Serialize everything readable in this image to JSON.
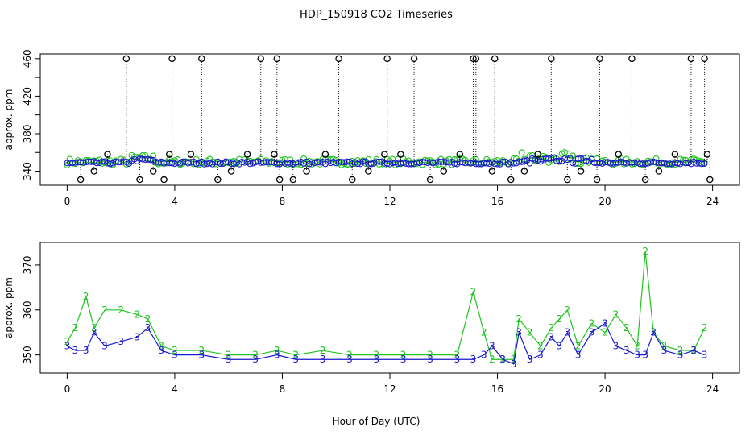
{
  "figure_title": "HDP_150918  CO2 Timeseries",
  "x_axis_label": "Hour of Day (UTC)",
  "colors": {
    "black": "#000000",
    "green": "#22c422",
    "blue": "#1a1acc",
    "cyan": "#22cccc"
  },
  "chart_data": [
    {
      "type": "scatter",
      "title": "",
      "ylabel": "approx. ppm",
      "xlabel": "",
      "xlim": [
        -1,
        25
      ],
      "ylim": [
        325,
        465
      ],
      "x_ticks": [
        0,
        4,
        8,
        12,
        16,
        20,
        24
      ],
      "y_ticks": [
        340,
        360,
        380,
        400,
        420,
        440,
        460
      ],
      "y_tick_labels": [
        "340",
        "",
        "380",
        "",
        "420",
        "",
        "460"
      ],
      "grid": false,
      "series": [
        {
          "color": "#000000",
          "style": "open-circles-with-dotted-drops",
          "x": [
            0.5,
            1.0,
            1.5,
            2.2,
            2.7,
            3.2,
            3.6,
            3.8,
            3.9,
            4.6,
            5.0,
            5.6,
            6.1,
            6.7,
            7.2,
            7.7,
            7.8,
            7.9,
            8.4,
            8.9,
            9.6,
            10.1,
            10.6,
            11.2,
            11.8,
            11.9,
            12.4,
            12.9,
            13.5,
            14.0,
            14.6,
            15.1,
            15.2,
            15.8,
            15.9,
            16.5,
            17.0,
            17.5,
            18.0,
            18.6,
            19.1,
            19.7,
            19.8,
            20.5,
            21.0,
            21.5,
            22.0,
            22.6,
            23.2,
            23.7,
            23.8,
            23.9
          ],
          "y": [
            331,
            340,
            358,
            460,
            331,
            340,
            331,
            358,
            460,
            358,
            460,
            331,
            340,
            358,
            460,
            358,
            460,
            331,
            331,
            340,
            358,
            460,
            331,
            340,
            358,
            460,
            358,
            460,
            331,
            340,
            358,
            460,
            460,
            340,
            460,
            331,
            340,
            358,
            460,
            331,
            340,
            331,
            460,
            358,
            460,
            331,
            340,
            358,
            460,
            460,
            358,
            331
          ]
        }
      ],
      "baseline_series": [
        {
          "color": "#22c422",
          "level": 350,
          "noise": 3.5
        },
        {
          "color": "#1a1acc",
          "level": 349,
          "noise": 1.5
        }
      ]
    },
    {
      "type": "line",
      "title": "",
      "ylabel": "approx. ppm",
      "xlabel": "Hour of Day (UTC)",
      "xlim": [
        -1,
        25
      ],
      "ylim": [
        346,
        375
      ],
      "x_ticks": [
        0,
        4,
        8,
        12,
        16,
        20,
        24
      ],
      "y_ticks": [
        350,
        360,
        370
      ],
      "grid": false,
      "series": [
        {
          "marker": "2",
          "color": "#22c422",
          "x": [
            0,
            0.3,
            0.7,
            1.0,
            1.4,
            2.0,
            2.6,
            3.0,
            3.5,
            4.0,
            5.0,
            6.0,
            7.0,
            7.8,
            8.5,
            9.5,
            10.5,
            11.5,
            12.5,
            13.5,
            14.5,
            15.1,
            15.5,
            15.8,
            16.2,
            16.6,
            16.8,
            17.2,
            17.6,
            18.0,
            18.3,
            18.6,
            19.0,
            19.5,
            20.0,
            20.4,
            20.8,
            21.2,
            21.5,
            21.8,
            22.2,
            22.8,
            23.3,
            23.7
          ],
          "y": [
            353,
            356,
            363,
            356,
            360,
            360,
            359,
            358,
            352,
            351,
            351,
            350,
            350,
            351,
            350,
            351,
            350,
            350,
            350,
            350,
            350,
            364,
            355,
            349,
            349,
            349,
            358,
            355,
            352,
            356,
            358,
            360,
            352,
            357,
            355,
            359,
            356,
            352,
            373,
            355,
            352,
            351,
            351,
            356
          ]
        },
        {
          "marker": "3",
          "color": "#1a1acc",
          "x": [
            0,
            0.3,
            0.7,
            1.0,
            1.4,
            2.0,
            2.6,
            3.0,
            3.5,
            4.0,
            5.0,
            6.0,
            7.0,
            7.8,
            8.5,
            9.5,
            10.5,
            11.5,
            12.5,
            13.5,
            14.5,
            15.1,
            15.5,
            15.8,
            16.2,
            16.6,
            16.8,
            17.2,
            17.6,
            18.0,
            18.3,
            18.6,
            19.0,
            19.5,
            20.0,
            20.4,
            20.8,
            21.2,
            21.5,
            21.8,
            22.2,
            22.8,
            23.3,
            23.7
          ],
          "y": [
            352,
            351,
            351,
            355,
            352,
            353,
            354,
            356,
            351,
            350,
            350,
            349,
            349,
            350,
            349,
            349,
            349,
            349,
            349,
            349,
            349,
            349,
            350,
            352,
            349,
            348,
            355,
            349,
            350,
            354,
            352,
            355,
            350,
            355,
            357,
            352,
            351,
            350,
            350,
            355,
            351,
            350,
            351,
            350
          ]
        }
      ]
    }
  ]
}
